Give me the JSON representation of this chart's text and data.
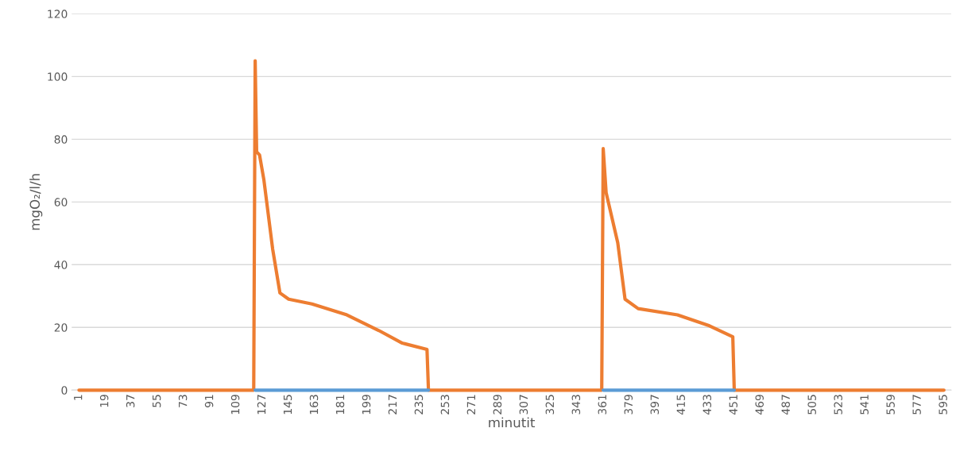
{
  "chart_data": {
    "type": "line",
    "xlabel": "minutit",
    "ylabel": "mgO₂/l/h",
    "series": [
      {
        "color": "#5b9bd5",
        "x": [
          122,
          241,
          300,
          361,
          451
        ],
        "values": [
          0,
          0,
          null,
          0,
          0
        ]
      },
      {
        "color": "#ed7d31",
        "x": [
          1,
          121,
          122,
          123,
          125,
          128,
          134,
          139,
          145,
          161,
          185,
          207,
          223,
          240,
          241,
          360,
          361,
          363,
          371,
          376,
          385,
          412,
          434,
          450,
          451,
          595
        ],
        "values": [
          0,
          0,
          105,
          76,
          75,
          67,
          45,
          31,
          29,
          27.5,
          24,
          19,
          15,
          13,
          0,
          0,
          77,
          63,
          47,
          29,
          26,
          24,
          20.5,
          17,
          0,
          0
        ]
      }
    ],
    "xlim": [
      -4,
      600
    ],
    "xticks": [
      1,
      19,
      37,
      55,
      73,
      91,
      109,
      127,
      145,
      163,
      181,
      199,
      217,
      235,
      253,
      271,
      289,
      307,
      325,
      343,
      361,
      379,
      397,
      415,
      433,
      451,
      469,
      487,
      505,
      523,
      541,
      559,
      577,
      595
    ],
    "ylim": [
      0,
      120
    ],
    "yticks": [
      0,
      20,
      40,
      60,
      80,
      100,
      120
    ],
    "grid": "y",
    "marker": "none",
    "line_style": "solid"
  }
}
